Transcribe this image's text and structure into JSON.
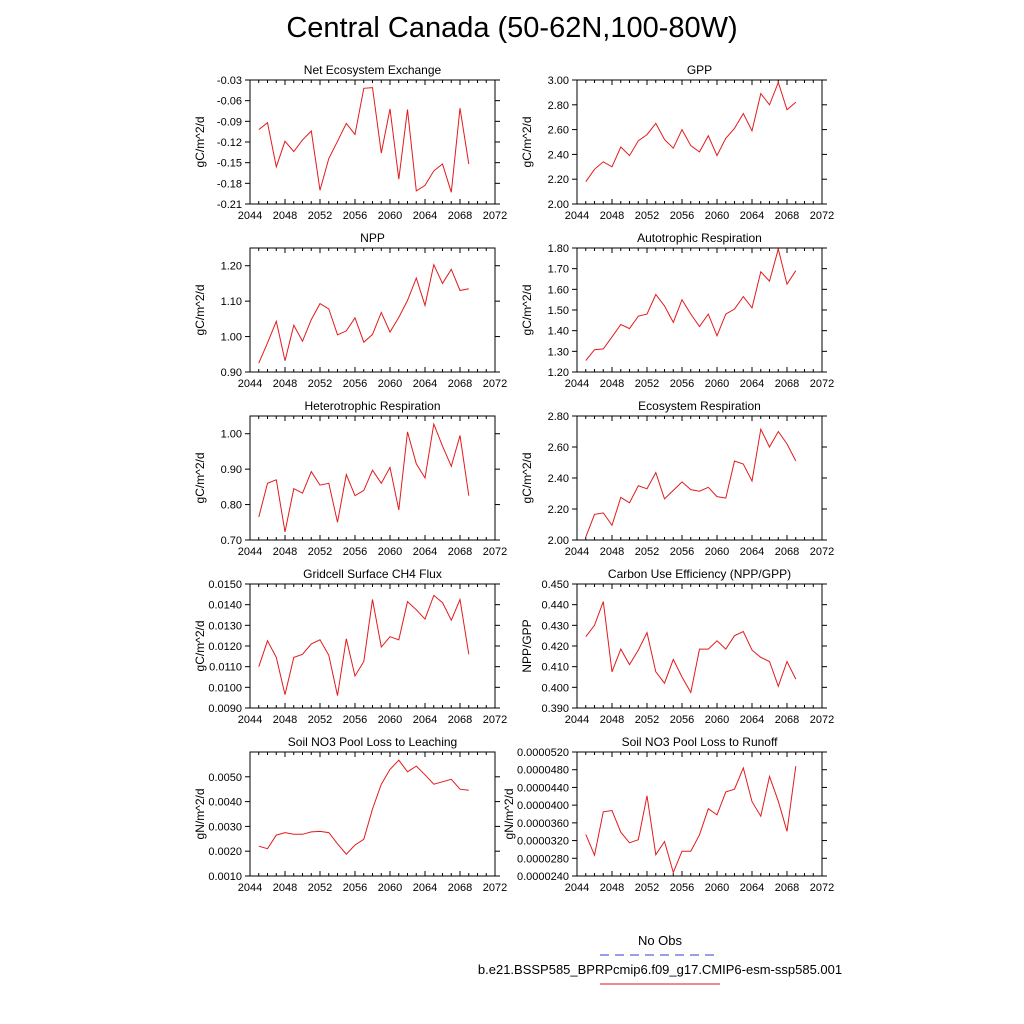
{
  "title": "Central Canada (50-62N,100-80W)",
  "legend": [
    {
      "label": "No Obs",
      "color": "#2b3fd6",
      "style": "dashed"
    },
    {
      "label": "b.e21.BSSP585_BPRPcmip6.f09_g17.CMIP6-esm-ssp585.001",
      "color": "#e31a1c",
      "style": "solid"
    }
  ],
  "chart_data": [
    {
      "type": "line",
      "title": "Net Ecosystem Exchange",
      "xlabel": "",
      "ylabel": "gC/m^2/d",
      "xlim": [
        2044,
        2072
      ],
      "ylim": [
        -0.21,
        -0.03
      ],
      "xticks": [
        2044,
        2048,
        2052,
        2056,
        2060,
        2064,
        2068,
        2072
      ],
      "yticks": [
        -0.21,
        -0.18,
        -0.15,
        -0.12,
        -0.09,
        -0.06,
        -0.03
      ],
      "ytick_labels": [
        "-0.21",
        "-0.18",
        "-0.15",
        "-0.12",
        "-0.09",
        "-0.06",
        "-0.03"
      ],
      "color": "#e31a1c",
      "x": [
        2045,
        2046,
        2047,
        2048,
        2049,
        2050,
        2051,
        2052,
        2053,
        2054,
        2055,
        2056,
        2057,
        2058,
        2059,
        2060,
        2061,
        2062,
        2063,
        2064,
        2065,
        2066,
        2067,
        2068,
        2069
      ],
      "y": [
        -0.102,
        -0.092,
        -0.156,
        -0.119,
        -0.134,
        -0.117,
        -0.104,
        -0.19,
        -0.144,
        -0.119,
        -0.093,
        -0.109,
        -0.042,
        -0.041,
        -0.136,
        -0.072,
        -0.174,
        -0.073,
        -0.191,
        -0.183,
        -0.162,
        -0.152,
        -0.193,
        -0.071,
        -0.152
      ]
    },
    {
      "type": "line",
      "title": "GPP",
      "xlabel": "",
      "ylabel": "gC/m^2/d",
      "xlim": [
        2044,
        2072
      ],
      "ylim": [
        2.0,
        3.0
      ],
      "xticks": [
        2044,
        2048,
        2052,
        2056,
        2060,
        2064,
        2068,
        2072
      ],
      "yticks": [
        2.0,
        2.2,
        2.4,
        2.6,
        2.8,
        3.0
      ],
      "ytick_labels": [
        "2.00",
        "2.20",
        "2.40",
        "2.60",
        "2.80",
        "3.00"
      ],
      "color": "#e31a1c",
      "x": [
        2045,
        2046,
        2047,
        2048,
        2049,
        2050,
        2051,
        2052,
        2053,
        2054,
        2055,
        2056,
        2057,
        2058,
        2059,
        2060,
        2061,
        2062,
        2063,
        2064,
        2065,
        2066,
        2067,
        2068,
        2069
      ],
      "y": [
        2.18,
        2.28,
        2.34,
        2.3,
        2.46,
        2.39,
        2.51,
        2.56,
        2.65,
        2.52,
        2.45,
        2.6,
        2.47,
        2.42,
        2.55,
        2.39,
        2.53,
        2.61,
        2.73,
        2.59,
        2.89,
        2.8,
        2.98,
        2.76,
        2.82
      ]
    },
    {
      "type": "line",
      "title": "NPP",
      "xlabel": "",
      "ylabel": "gC/m^2/d",
      "xlim": [
        2044,
        2072
      ],
      "ylim": [
        0.9,
        1.25
      ],
      "xticks": [
        2044,
        2048,
        2052,
        2056,
        2060,
        2064,
        2068,
        2072
      ],
      "yticks": [
        0.9,
        1.0,
        1.1,
        1.2
      ],
      "ytick_labels": [
        "0.90",
        "1.00",
        "1.10",
        "1.20"
      ],
      "color": "#e31a1c",
      "x": [
        2045,
        2046,
        2047,
        2048,
        2049,
        2050,
        2051,
        2052,
        2053,
        2054,
        2055,
        2056,
        2057,
        2058,
        2059,
        2060,
        2061,
        2062,
        2063,
        2064,
        2065,
        2066,
        2067,
        2068,
        2069
      ],
      "y": [
        0.925,
        0.982,
        1.043,
        0.932,
        1.032,
        0.987,
        1.048,
        1.093,
        1.078,
        1.005,
        1.016,
        1.053,
        0.984,
        1.006,
        1.068,
        1.013,
        1.054,
        1.102,
        1.165,
        1.088,
        1.203,
        1.15,
        1.19,
        1.13,
        1.135
      ]
    },
    {
      "type": "line",
      "title": "Autotrophic Respiration",
      "xlabel": "",
      "ylabel": "gC/m^2/d",
      "xlim": [
        2044,
        2072
      ],
      "ylim": [
        1.2,
        1.8
      ],
      "xticks": [
        2044,
        2048,
        2052,
        2056,
        2060,
        2064,
        2068,
        2072
      ],
      "yticks": [
        1.2,
        1.3,
        1.4,
        1.5,
        1.6,
        1.7,
        1.8
      ],
      "ytick_labels": [
        "1.20",
        "1.30",
        "1.40",
        "1.50",
        "1.60",
        "1.70",
        "1.80"
      ],
      "color": "#e31a1c",
      "x": [
        2045,
        2046,
        2047,
        2048,
        2049,
        2050,
        2051,
        2052,
        2053,
        2054,
        2055,
        2056,
        2057,
        2058,
        2059,
        2060,
        2061,
        2062,
        2063,
        2064,
        2065,
        2066,
        2067,
        2068,
        2069
      ],
      "y": [
        1.255,
        1.308,
        1.312,
        1.37,
        1.43,
        1.41,
        1.47,
        1.48,
        1.575,
        1.52,
        1.44,
        1.55,
        1.48,
        1.42,
        1.48,
        1.375,
        1.48,
        1.505,
        1.565,
        1.51,
        1.685,
        1.64,
        1.795,
        1.625,
        1.69
      ]
    },
    {
      "type": "line",
      "title": "Heterotrophic Respiration",
      "xlabel": "",
      "ylabel": "gC/m^2/d",
      "xlim": [
        2044,
        2072
      ],
      "ylim": [
        0.7,
        1.05
      ],
      "xticks": [
        2044,
        2048,
        2052,
        2056,
        2060,
        2064,
        2068,
        2072
      ],
      "yticks": [
        0.7,
        0.8,
        0.9,
        1.0
      ],
      "ytick_labels": [
        "0.70",
        "0.80",
        "0.90",
        "1.00"
      ],
      "color": "#e31a1c",
      "x": [
        2045,
        2046,
        2047,
        2048,
        2049,
        2050,
        2051,
        2052,
        2053,
        2054,
        2055,
        2056,
        2057,
        2058,
        2059,
        2060,
        2061,
        2062,
        2063,
        2064,
        2065,
        2066,
        2067,
        2068,
        2069
      ],
      "y": [
        0.765,
        0.86,
        0.87,
        0.723,
        0.845,
        0.832,
        0.893,
        0.855,
        0.86,
        0.75,
        0.885,
        0.825,
        0.84,
        0.897,
        0.86,
        0.905,
        0.785,
        1.005,
        0.915,
        0.875,
        1.027,
        0.965,
        0.908,
        0.995,
        0.825
      ]
    },
    {
      "type": "line",
      "title": "Ecosystem Respiration",
      "xlabel": "",
      "ylabel": "gC/m^2/d",
      "xlim": [
        2044,
        2072
      ],
      "ylim": [
        2.0,
        2.8
      ],
      "xticks": [
        2044,
        2048,
        2052,
        2056,
        2060,
        2064,
        2068,
        2072
      ],
      "yticks": [
        2.0,
        2.2,
        2.4,
        2.6,
        2.8
      ],
      "ytick_labels": [
        "2.00",
        "2.20",
        "2.40",
        "2.60",
        "2.80"
      ],
      "color": "#e31a1c",
      "x": [
        2045,
        2046,
        2047,
        2048,
        2049,
        2050,
        2051,
        2052,
        2053,
        2054,
        2055,
        2056,
        2057,
        2058,
        2059,
        2060,
        2061,
        2062,
        2063,
        2064,
        2065,
        2066,
        2067,
        2068,
        2069
      ],
      "y": [
        2.02,
        2.165,
        2.175,
        2.095,
        2.275,
        2.24,
        2.35,
        2.33,
        2.435,
        2.265,
        2.32,
        2.375,
        2.325,
        2.315,
        2.34,
        2.28,
        2.27,
        2.51,
        2.49,
        2.38,
        2.715,
        2.6,
        2.7,
        2.62,
        2.51
      ]
    },
    {
      "type": "line",
      "title": "Gridcell Surface CH4 Flux",
      "xlabel": "",
      "ylabel": "gC/m^2/d",
      "xlim": [
        2044,
        2072
      ],
      "ylim": [
        0.009,
        0.015
      ],
      "xticks": [
        2044,
        2048,
        2052,
        2056,
        2060,
        2064,
        2068,
        2072
      ],
      "yticks": [
        0.009,
        0.01,
        0.011,
        0.012,
        0.013,
        0.014,
        0.015
      ],
      "ytick_labels": [
        "0.0090",
        "0.0100",
        "0.0110",
        "0.0120",
        "0.0130",
        "0.0140",
        "0.0150"
      ],
      "color": "#e31a1c",
      "x": [
        2045,
        2046,
        2047,
        2048,
        2049,
        2050,
        2051,
        2052,
        2053,
        2054,
        2055,
        2056,
        2057,
        2058,
        2059,
        2060,
        2061,
        2062,
        2063,
        2064,
        2065,
        2066,
        2067,
        2068,
        2069
      ],
      "y": [
        0.011,
        0.01225,
        0.01145,
        0.00965,
        0.01145,
        0.0116,
        0.0121,
        0.0123,
        0.01155,
        0.0096,
        0.01235,
        0.01055,
        0.01125,
        0.01425,
        0.01195,
        0.01245,
        0.0123,
        0.01415,
        0.01375,
        0.0133,
        0.01445,
        0.0141,
        0.01325,
        0.01425,
        0.0116
      ]
    },
    {
      "type": "line",
      "title": "Carbon Use Efficiency (NPP/GPP)",
      "xlabel": "",
      "ylabel": "NPP/GPP",
      "xlim": [
        2044,
        2072
      ],
      "ylim": [
        0.39,
        0.45
      ],
      "xticks": [
        2044,
        2048,
        2052,
        2056,
        2060,
        2064,
        2068,
        2072
      ],
      "yticks": [
        0.39,
        0.4,
        0.41,
        0.42,
        0.43,
        0.44,
        0.45
      ],
      "ytick_labels": [
        "0.390",
        "0.400",
        "0.410",
        "0.420",
        "0.430",
        "0.440",
        "0.450"
      ],
      "color": "#e31a1c",
      "x": [
        2045,
        2046,
        2047,
        2048,
        2049,
        2050,
        2051,
        2052,
        2053,
        2054,
        2055,
        2056,
        2057,
        2058,
        2059,
        2060,
        2061,
        2062,
        2063,
        2064,
        2065,
        2066,
        2067,
        2068,
        2069
      ],
      "y": [
        0.4245,
        0.43,
        0.4415,
        0.4075,
        0.4185,
        0.411,
        0.418,
        0.4265,
        0.4075,
        0.402,
        0.4135,
        0.405,
        0.3975,
        0.4185,
        0.4185,
        0.4225,
        0.4185,
        0.425,
        0.427,
        0.418,
        0.4145,
        0.4125,
        0.4005,
        0.4125,
        0.404
      ]
    },
    {
      "type": "line",
      "title": "Soil NO3 Pool Loss to Leaching",
      "xlabel": "",
      "ylabel": "gN/m^2/d",
      "xlim": [
        2044,
        2072
      ],
      "ylim": [
        0.001,
        0.006
      ],
      "xticks": [
        2044,
        2048,
        2052,
        2056,
        2060,
        2064,
        2068,
        2072
      ],
      "yticks": [
        0.001,
        0.002,
        0.003,
        0.004,
        0.005
      ],
      "ytick_labels": [
        "0.0010",
        "0.0020",
        "0.0030",
        "0.0040",
        "0.0050"
      ],
      "color": "#e31a1c",
      "x": [
        2045,
        2046,
        2047,
        2048,
        2049,
        2050,
        2051,
        2052,
        2053,
        2054,
        2055,
        2056,
        2057,
        2058,
        2059,
        2060,
        2061,
        2062,
        2063,
        2064,
        2065,
        2066,
        2067,
        2068,
        2069
      ],
      "y": [
        0.0022,
        0.0021,
        0.00265,
        0.00275,
        0.00268,
        0.00268,
        0.00278,
        0.0028,
        0.00275,
        0.0023,
        0.00188,
        0.00225,
        0.00248,
        0.0037,
        0.0047,
        0.0053,
        0.00567,
        0.0052,
        0.00543,
        0.00508,
        0.0047,
        0.0048,
        0.0049,
        0.0045,
        0.00446
      ]
    },
    {
      "type": "line",
      "title": "Soil NO3 Pool Loss to Runoff",
      "xlabel": "",
      "ylabel": "gN/m^2/d",
      "xlim": [
        2044,
        2072
      ],
      "ylim": [
        2.4e-05,
        5.2e-05
      ],
      "xticks": [
        2044,
        2048,
        2052,
        2056,
        2060,
        2064,
        2068,
        2072
      ],
      "yticks": [
        2.4e-05,
        2.8e-05,
        3.2e-05,
        3.6e-05,
        4e-05,
        4.4e-05,
        4.8e-05,
        5.2e-05
      ],
      "ytick_labels": [
        "0.0000240",
        "0.0000280",
        "0.0000320",
        "0.0000360",
        "0.0000400",
        "0.0000440",
        "0.0000480",
        "0.0000520"
      ],
      "color": "#e31a1c",
      "x": [
        2045,
        2046,
        2047,
        2048,
        2049,
        2050,
        2051,
        2052,
        2053,
        2054,
        2055,
        2056,
        2057,
        2058,
        2059,
        2060,
        2061,
        2062,
        2063,
        2064,
        2065,
        2066,
        2067,
        2068,
        2069
      ],
      "y": [
        3.34e-05,
        2.87e-05,
        3.85e-05,
        3.88e-05,
        3.39e-05,
        3.15e-05,
        3.22e-05,
        4.21e-05,
        2.88e-05,
        3.18e-05,
        2.48e-05,
        2.96e-05,
        2.96e-05,
        3.33e-05,
        3.92e-05,
        3.78e-05,
        4.3e-05,
        4.36e-05,
        4.84e-05,
        4.08e-05,
        3.75e-05,
        4.65e-05,
        4.09e-05,
        3.41e-05,
        4.88e-05
      ]
    }
  ]
}
